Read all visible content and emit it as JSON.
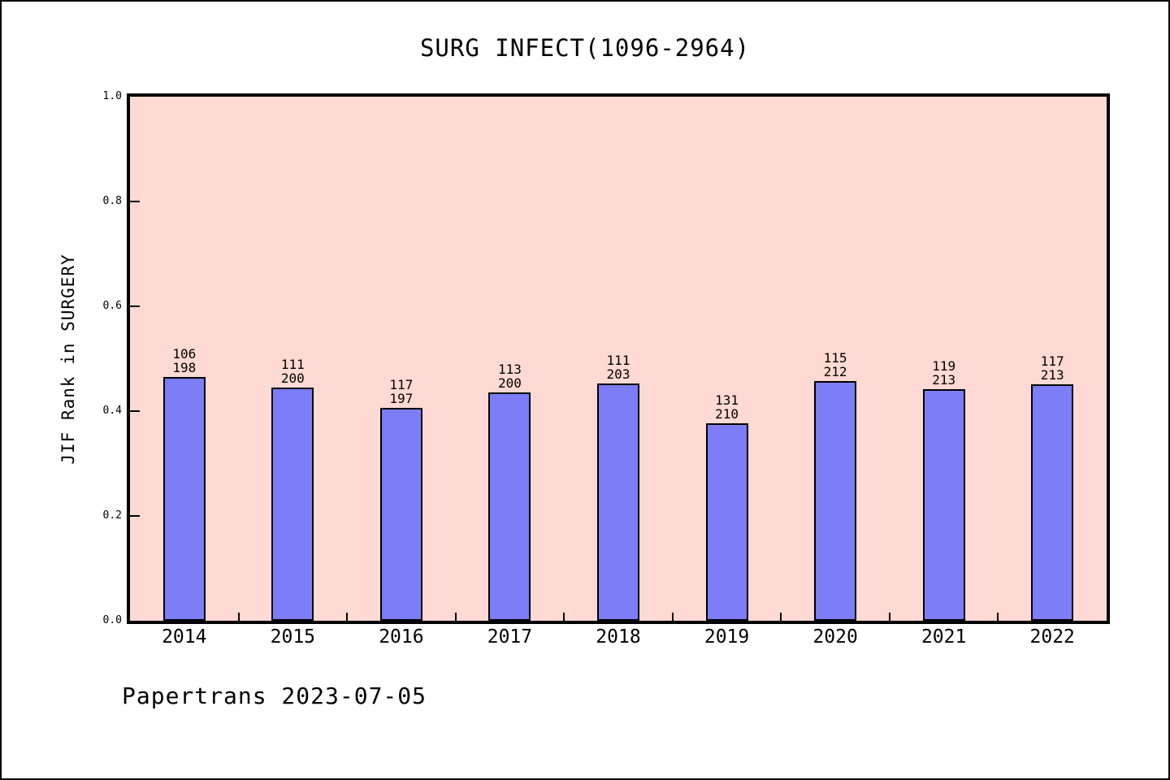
{
  "title": "SURG INFECT(1096-2964)",
  "footer": "Papertrans 2023-07-05",
  "colors": {
    "page_bg": "#ffffff",
    "frame": "#000000",
    "plot_bg": "#ffd9d3",
    "bar_fill": "#7d7df8",
    "bar_border": "#000000",
    "text": "#000000"
  },
  "chart_data": {
    "type": "bar",
    "title": "SURG INFECT(1096-2964)",
    "xlabel": "",
    "ylabel": "JIF Rank in SURGERY",
    "ylim": [
      0.0,
      1.0
    ],
    "yticks": [
      0.0,
      0.2,
      0.4,
      0.6,
      0.8,
      1.0
    ],
    "grid": false,
    "legend": null,
    "categories": [
      "2014",
      "2015",
      "2016",
      "2017",
      "2018",
      "2019",
      "2020",
      "2021",
      "2022"
    ],
    "bars": [
      {
        "year": "2014",
        "rank": 106,
        "total": 198,
        "value": 0.4646
      },
      {
        "year": "2015",
        "rank": 111,
        "total": 200,
        "value": 0.445
      },
      {
        "year": "2016",
        "rank": 117,
        "total": 197,
        "value": 0.4061
      },
      {
        "year": "2017",
        "rank": 113,
        "total": 200,
        "value": 0.435
      },
      {
        "year": "2018",
        "rank": 111,
        "total": 203,
        "value": 0.4532
      },
      {
        "year": "2019",
        "rank": 131,
        "total": 210,
        "value": 0.3762
      },
      {
        "year": "2020",
        "rank": 115,
        "total": 212,
        "value": 0.4575
      },
      {
        "year": "2021",
        "rank": 119,
        "total": 213,
        "value": 0.4413
      },
      {
        "year": "2022",
        "rank": 117,
        "total": 213,
        "value": 0.4507
      }
    ],
    "bar_label_format": "rank over total, two lines above each bar"
  }
}
